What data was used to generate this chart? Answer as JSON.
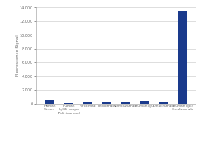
{
  "categories": [
    "Human\nSerum",
    "Human\nIgG1 kappa\n(Palivizumab)",
    "Infliximab",
    "Rituximab",
    "Alemtuzumab",
    "Human IgG",
    "Omalizumab",
    "Human IgE/\nOmalizumab"
  ],
  "values": [
    550,
    120,
    350,
    280,
    350,
    380,
    350,
    13500
  ],
  "bar_color": "#1a3a8c",
  "ylabel": "Fluorescence Signal",
  "ylim": [
    0,
    14000
  ],
  "yticks": [
    0,
    2000,
    4000,
    6000,
    8000,
    10000,
    12000,
    14000
  ],
  "background_color": "#ffffff",
  "grid_color": "#d0d0d0",
  "title": ""
}
